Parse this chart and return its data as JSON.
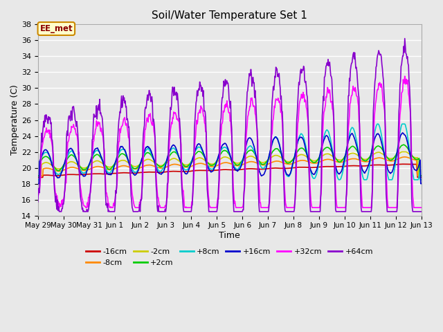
{
  "title": "Soil/Water Temperature Set 1",
  "xlabel": "Time",
  "ylabel": "Temperature (C)",
  "ylim": [
    14,
    38
  ],
  "yticks": [
    14,
    16,
    18,
    20,
    22,
    24,
    26,
    28,
    30,
    32,
    34,
    36,
    38
  ],
  "xtick_labels": [
    "May 29",
    "May 30",
    "May 31",
    "Jun 1",
    "Jun 2",
    "Jun 3",
    "Jun 4",
    "Jun 5",
    "Jun 6",
    "Jun 7",
    "Jun 8",
    "Jun 9",
    "Jun 10",
    "Jun 11",
    "Jun 12",
    "Jun 13"
  ],
  "series_colors": {
    "-16cm": "#cc0000",
    "-8cm": "#ff8800",
    "-2cm": "#cccc00",
    "+2cm": "#00cc00",
    "+8cm": "#00cccc",
    "+16cm": "#0000cc",
    "+32cm": "#ff00ff",
    "+64cm": "#8800cc"
  },
  "annotation_text": "EE_met",
  "annotation_bg": "#ffffcc",
  "annotation_border": "#cc8800",
  "bg_color": "#e8e8e8",
  "grid_color": "#ffffff"
}
